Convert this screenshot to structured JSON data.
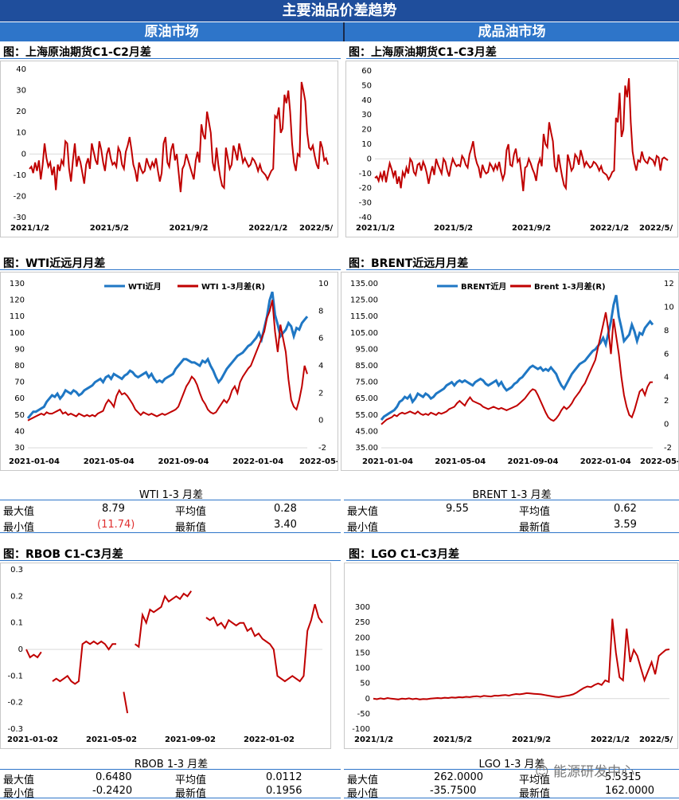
{
  "page": {
    "title": "主要油品价差趋势",
    "left_header": "原油市场",
    "right_header": "成品油市场",
    "watermark": "能源研发中心"
  },
  "chart_data": [
    {
      "id": "sh",
      "type": "line",
      "title": "图：上海原油期货C1-C2月差",
      "ylim": [
        -30,
        40
      ],
      "yticks": [
        40,
        30,
        20,
        10,
        0,
        -10,
        -20,
        -30
      ],
      "xticks": [
        "2021/1/2",
        "2021/5/2",
        "2021/9/2",
        "2022/1/2",
        "2022/5/"
      ],
      "series": [
        {
          "values": [
            -7,
            -6,
            -9,
            -4,
            -8,
            -3,
            -12,
            -5,
            5,
            -2,
            -6,
            -4,
            -10,
            -6,
            -17,
            -5,
            -8,
            -3,
            -5,
            6,
            5,
            -7,
            -13,
            -3,
            5,
            -6,
            -1,
            -4,
            -9,
            -14,
            -5,
            -2,
            -7,
            5,
            1,
            -3,
            -5,
            6,
            2,
            -4,
            -8,
            0,
            3,
            -2,
            -5,
            -4,
            -6,
            3,
            1,
            -5,
            -7,
            1,
            4,
            8,
            2,
            -5,
            -8,
            -13,
            -4,
            -7,
            -9,
            -8,
            -2,
            -5,
            -7,
            -4,
            -6,
            -2,
            -8,
            -13,
            -9,
            5,
            8,
            -4,
            -6,
            2,
            5,
            -3,
            0,
            -9,
            -18,
            -7,
            -5,
            0,
            -3,
            -6,
            -9,
            -12,
            -3,
            1,
            -4,
            14,
            9,
            7,
            20,
            15,
            10,
            -4,
            -8,
            3,
            -5,
            -11,
            -15,
            -16,
            3,
            -2,
            -7,
            -5,
            4,
            1,
            -3,
            5,
            1,
            -4,
            -2,
            -4,
            -6,
            -5,
            -2,
            -3,
            -5,
            -8,
            -5,
            -8,
            -9,
            -10,
            -12,
            -10,
            -8,
            -7,
            18,
            17,
            22,
            10,
            12,
            28,
            24,
            30,
            20,
            5,
            -4,
            -8,
            0,
            -1,
            34,
            30,
            25,
            10,
            3,
            2,
            4,
            -1,
            -5,
            -7,
            6,
            3,
            -3,
            -2,
            -5
          ]
        }
      ]
    },
    {
      "id": "sc3",
      "type": "line",
      "title": "图：上海原油期货C1-C3月差",
      "ylim": [
        -40,
        60
      ],
      "yticks": [
        60,
        50,
        40,
        30,
        20,
        10,
        0,
        -10,
        -20,
        -30,
        -40
      ],
      "xticks": [
        "2021/1/2",
        "2021/5/2",
        "2021/9/2",
        "2022/1/2",
        "2022/5/"
      ],
      "series": [
        {
          "values": [
            -13,
            -12,
            -15,
            -10,
            -14,
            -8,
            -16,
            -9,
            -3,
            -7,
            -12,
            -8,
            -17,
            -12,
            -20,
            -9,
            -12,
            -6,
            -10,
            0,
            -2,
            -9,
            -11,
            -4,
            -3,
            -8,
            -2,
            -5,
            -10,
            -17,
            -10,
            -5,
            -11,
            0,
            -4,
            -7,
            -10,
            0,
            -2,
            -8,
            -12,
            -5,
            0,
            -3,
            -5,
            -4,
            -5,
            2,
            0,
            -4,
            -6,
            3,
            7,
            12,
            2,
            -3,
            -6,
            -13,
            -4,
            -8,
            -10,
            -9,
            -3,
            -5,
            -8,
            -4,
            -7,
            -2,
            -9,
            -14,
            -10,
            6,
            10,
            -4,
            -5,
            3,
            7,
            -2,
            0,
            -10,
            -22,
            -6,
            -5,
            0,
            -3,
            -7,
            -10,
            -15,
            -4,
            0,
            -5,
            17,
            10,
            8,
            25,
            18,
            12,
            -5,
            -9,
            3,
            -5,
            -12,
            -18,
            -20,
            3,
            -2,
            -8,
            -6,
            3,
            1,
            -4,
            6,
            1,
            -5,
            -2,
            -4,
            -6,
            -5,
            -2,
            -3,
            -5,
            -8,
            -5,
            -9,
            -10,
            -11,
            -14,
            -12,
            -9,
            -8,
            28,
            25,
            45,
            15,
            20,
            50,
            42,
            55,
            25,
            5,
            -3,
            -8,
            -1,
            -2,
            5,
            0,
            -2,
            -3,
            1,
            0,
            -1,
            -4,
            2,
            1,
            -8,
            0,
            1,
            0,
            -1
          ]
        }
      ]
    },
    {
      "id": "wti",
      "type": "line",
      "title": "图：WTI近远月月差",
      "ylim": [
        30,
        130
      ],
      "y2lim": [
        -2,
        10
      ],
      "yticks": [
        130,
        120,
        110,
        100,
        90,
        80,
        70,
        60,
        50,
        40,
        30
      ],
      "y2ticks": [
        10,
        8,
        6,
        4,
        2,
        0,
        -2
      ],
      "xticks": [
        "2021-01-04",
        "2021-05-04",
        "2021-09-04",
        "2022-01-04",
        "2022-05-04"
      ],
      "legend": [
        "WTI近月",
        "WTI 1-3月差(R)"
      ],
      "colors": [
        "#1f77c4",
        "#c00000"
      ],
      "series": [
        {
          "name": "WTI近月",
          "values": [
            48,
            50,
            52,
            52,
            53,
            54,
            55,
            58,
            60,
            62,
            61,
            63,
            60,
            62,
            65,
            64,
            63,
            65,
            64,
            62,
            63,
            65,
            66,
            67,
            68,
            70,
            71,
            72,
            70,
            73,
            74,
            72,
            75,
            74,
            73,
            72,
            74,
            75,
            77,
            76,
            74,
            73,
            74,
            75,
            76,
            73,
            75,
            72,
            70,
            71,
            70,
            72,
            73,
            74,
            75,
            78,
            80,
            82,
            84,
            84,
            83,
            82,
            82,
            81,
            80,
            83,
            82,
            84,
            80,
            77,
            73,
            70,
            72,
            75,
            78,
            80,
            82,
            84,
            86,
            87,
            88,
            90,
            92,
            93,
            95,
            97,
            100,
            96,
            103,
            110,
            120,
            125,
            111,
            105,
            98,
            100,
            102,
            106,
            104,
            98,
            103,
            102,
            106,
            108,
            110
          ]
        },
        {
          "name": "WTI 1-3月差(R)",
          "values": [
            0.0,
            0.1,
            0.2,
            0.3,
            0.4,
            0.5,
            0.4,
            0.6,
            0.5,
            0.5,
            0.6,
            0.7,
            0.8,
            0.5,
            0.6,
            0.4,
            0.5,
            0.4,
            0.3,
            0.5,
            0.4,
            0.3,
            0.4,
            0.3,
            0.4,
            0.3,
            0.5,
            0.6,
            0.7,
            1.2,
            1.5,
            1.3,
            1.0,
            1.8,
            2.2,
            1.9,
            2.0,
            1.8,
            1.5,
            1.2,
            0.8,
            0.6,
            0.4,
            0.6,
            0.5,
            0.4,
            0.5,
            0.4,
            0.3,
            0.4,
            0.5,
            0.4,
            0.5,
            0.6,
            0.7,
            0.8,
            1.0,
            1.5,
            2.0,
            2.5,
            2.8,
            3.2,
            3.0,
            2.6,
            2.0,
            1.5,
            1.2,
            0.8,
            0.6,
            0.5,
            0.6,
            0.9,
            1.2,
            1.5,
            1.3,
            1.6,
            2.2,
            2.5,
            2.0,
            2.8,
            3.2,
            3.5,
            3.8,
            4.0,
            4.5,
            5.0,
            5.5,
            6.0,
            6.5,
            7.5,
            8.0,
            8.8,
            6.5,
            5.0,
            7.0,
            6.0,
            5.0,
            3.0,
            1.5,
            1.0,
            0.8,
            1.5,
            2.5,
            4.0,
            3.4
          ]
        }
      ]
    },
    {
      "id": "brent",
      "type": "line",
      "title": "图：BRENT近远月月差",
      "ylim": [
        35,
        135
      ],
      "y2lim": [
        -2,
        12
      ],
      "yticks": [
        "135.00",
        "125.00",
        "115.00",
        "105.00",
        "95.00",
        "85.00",
        "75.00",
        "65.00",
        "55.00",
        "45.00",
        "35.00"
      ],
      "y2ticks": [
        12,
        10,
        8,
        6,
        4,
        2,
        0,
        -2
      ],
      "xticks": [
        "2021-01-04",
        "2021-05-04",
        "2021-09-04",
        "2022-01-04",
        "2022-05-04"
      ],
      "legend": [
        "BRENT近月",
        "Brent 1-3月差(R)"
      ],
      "colors": [
        "#1f77c4",
        "#c00000"
      ],
      "series": [
        {
          "name": "BRENT近月",
          "values": [
            52,
            54,
            55,
            56,
            57,
            58,
            60,
            63,
            64,
            66,
            65,
            67,
            63,
            65,
            68,
            67,
            66,
            68,
            67,
            65,
            66,
            68,
            69,
            70,
            71,
            73,
            74,
            75,
            73,
            75,
            76,
            75,
            76,
            75,
            74,
            73,
            75,
            76,
            77,
            76,
            74,
            73,
            74,
            75,
            76,
            73,
            75,
            72,
            70,
            71,
            72,
            74,
            75,
            77,
            78,
            80,
            82,
            84,
            85,
            84,
            83,
            84,
            82,
            83,
            82,
            84,
            82,
            80,
            76,
            73,
            71,
            74,
            77,
            80,
            82,
            84,
            86,
            87,
            88,
            90,
            92,
            94,
            95,
            97,
            99,
            102,
            98,
            105,
            112,
            122,
            128,
            115,
            108,
            100,
            102,
            104,
            110,
            106,
            100,
            105,
            104,
            108,
            110,
            112,
            110
          ]
        },
        {
          "name": "Brent 1-3月差(R)",
          "values": [
            0.0,
            0.2,
            0.4,
            0.5,
            0.6,
            0.8,
            0.7,
            0.9,
            1.0,
            0.9,
            1.0,
            1.1,
            1.0,
            0.9,
            1.1,
            0.9,
            0.8,
            0.9,
            0.8,
            1.0,
            0.9,
            0.8,
            1.0,
            0.9,
            1.0,
            1.1,
            1.3,
            1.4,
            1.5,
            1.8,
            2.0,
            1.8,
            1.6,
            2.0,
            2.3,
            2.0,
            1.9,
            1.8,
            1.7,
            1.5,
            1.4,
            1.3,
            1.4,
            1.5,
            1.4,
            1.3,
            1.4,
            1.3,
            1.2,
            1.3,
            1.4,
            1.5,
            1.6,
            1.8,
            2.0,
            2.2,
            2.5,
            2.8,
            3.0,
            2.9,
            2.5,
            2.0,
            1.5,
            1.0,
            0.6,
            0.4,
            0.3,
            0.5,
            0.8,
            1.2,
            1.5,
            1.3,
            1.5,
            1.8,
            2.2,
            2.5,
            2.8,
            3.2,
            3.5,
            4.0,
            4.5,
            5.0,
            5.5,
            6.5,
            7.5,
            8.5,
            9.55,
            8.0,
            6.0,
            9.0,
            7.5,
            6.0,
            4.0,
            2.5,
            1.5,
            0.8,
            0.6,
            1.2,
            2.0,
            2.8,
            3.0,
            2.5,
            3.2,
            3.59,
            3.6
          ]
        }
      ]
    },
    {
      "id": "rbob",
      "type": "line",
      "title": "图：RBOB C1-C3月差",
      "ylim": [
        -0.3,
        0.3
      ],
      "yticks": [
        "0.3",
        "0.2",
        "0.1",
        "0",
        "-0.1",
        "-0.2",
        "-0.3"
      ],
      "xticks": [
        "2021-01-02",
        "2021-05-02",
        "2021-09-02",
        "2022-01-02"
      ],
      "series": [
        {
          "values": [
            0.0,
            -0.03,
            -0.02,
            -0.03,
            -0.01,
            null,
            null,
            -0.12,
            -0.11,
            -0.12,
            -0.11,
            -0.1,
            -0.12,
            -0.13,
            -0.12,
            0.02,
            0.03,
            0.02,
            0.03,
            0.02,
            0.03,
            0.02,
            0.0,
            0.02,
            0.02,
            null,
            -0.16,
            -0.24,
            null,
            0.02,
            0.01,
            0.13,
            0.1,
            0.15,
            0.14,
            0.15,
            0.16,
            0.2,
            0.18,
            0.19,
            0.2,
            0.19,
            0.21,
            0.2,
            0.22,
            null,
            0.01,
            null,
            0.12,
            0.11,
            0.12,
            0.09,
            0.1,
            0.08,
            0.11,
            0.1,
            0.09,
            0.1,
            0.1,
            0.07,
            0.08,
            0.05,
            0.06,
            0.04,
            0.03,
            0.02,
            0.0,
            -0.1,
            -0.11,
            -0.12,
            -0.11,
            -0.1,
            -0.11,
            -0.12,
            -0.1,
            0.07,
            0.11,
            0.17,
            0.12,
            0.1
          ]
        }
      ]
    },
    {
      "id": "lgo",
      "type": "line",
      "title": "图：LGO C1-C3月差",
      "ylim": [
        -100,
        350
      ],
      "yticks": [
        300,
        250,
        200,
        150,
        100,
        50,
        0,
        -50,
        -100
      ],
      "xticks": [
        "2021/1/2",
        "2021/5/2",
        "2021/9/2",
        "2022/1/2",
        "2022/5/"
      ],
      "series": [
        {
          "values": [
            0,
            -2,
            1,
            -1,
            2,
            0,
            -1,
            -3,
            0,
            -1,
            1,
            -2,
            0,
            -3,
            -1,
            -2,
            0,
            1,
            2,
            1,
            3,
            2,
            4,
            3,
            5,
            4,
            6,
            5,
            7,
            8,
            6,
            9,
            8,
            7,
            10,
            9,
            11,
            12,
            10,
            13,
            15,
            14,
            16,
            18,
            17,
            16,
            15,
            14,
            12,
            10,
            8,
            6,
            5,
            7,
            9,
            11,
            14,
            20,
            28,
            35,
            40,
            38,
            45,
            50,
            45,
            60,
            55,
            262,
            150,
            70,
            60,
            230,
            120,
            160,
            140,
            100,
            60,
            90,
            120,
            80,
            140,
            150,
            160,
            162
          ]
        }
      ]
    }
  ],
  "stats": {
    "wti": {
      "title": "WTI 1-3 月差",
      "max_label": "最大值",
      "max": "8.79",
      "avg_label": "平均值",
      "avg": "0.28",
      "min_label": "最小值",
      "min": "(11.74)",
      "latest_label": "最新值",
      "latest": "3.40"
    },
    "brent": {
      "title": "BRENT 1-3 月差",
      "max_label": "最大值",
      "max": "9.55",
      "avg_label": "平均值",
      "avg": "0.62",
      "min_label": "最小值",
      "min": "",
      "latest_label": "最新值",
      "latest": "3.59"
    },
    "rbob": {
      "title": "RBOB 1-3 月差",
      "max_label": "最大值",
      "max": "0.6480",
      "avg_label": "平均值",
      "avg": "0.0112",
      "min_label": "最小值",
      "min": "-0.2420",
      "latest_label": "最新值",
      "latest": "0.1956"
    },
    "lgo": {
      "title": "LGO 1-3 月差",
      "max_label": "最大值",
      "max": "262.0000",
      "avg_label": "平均值",
      "avg": "5.5315",
      "min_label": "最小值",
      "min": "-35.7500",
      "latest_label": "最新值",
      "latest": "162.0000"
    }
  }
}
